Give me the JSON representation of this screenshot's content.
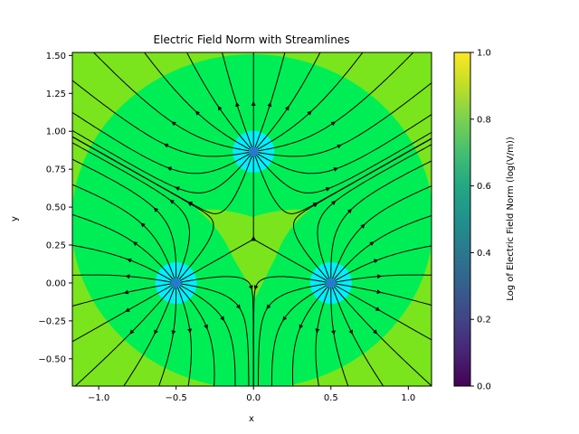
{
  "chart_data": {
    "type": "heatmap",
    "title": "Electric Field Norm with Streamlines",
    "xlabel": "x",
    "ylabel": "y",
    "xlim": [
      -1.17,
      1.15
    ],
    "ylim": [
      -0.68,
      1.52
    ],
    "x_ticks": [
      "−1.0",
      "−0.5",
      "0.0",
      "0.5",
      "1.0"
    ],
    "x_tick_values": [
      -1.0,
      -0.5,
      0.0,
      0.5,
      1.0
    ],
    "y_ticks": [
      "−0.50",
      "−0.25",
      "0.00",
      "0.25",
      "0.50",
      "0.75",
      "1.00",
      "1.25",
      "1.50"
    ],
    "y_tick_values": [
      -0.5,
      -0.25,
      0.0,
      0.25,
      0.5,
      0.75,
      1.0,
      1.25,
      1.5
    ],
    "charges": [
      {
        "x": -0.5,
        "y": 0.0
      },
      {
        "x": 0.5,
        "y": 0.0
      },
      {
        "x": 0.0,
        "y": 0.866
      }
    ],
    "colorbar": {
      "label": "Log of Electric Field Norm (log(V/m))",
      "range": [
        0.0,
        1.0
      ],
      "ticks": [
        "0.0",
        "0.2",
        "0.4",
        "0.6",
        "0.8",
        "1.0"
      ],
      "tick_values": [
        0.0,
        0.2,
        0.4,
        0.6,
        0.8,
        1.0
      ],
      "colormap": "viridis"
    },
    "colors": {
      "low_field": "#7ae51c",
      "mid_field": "#00ee55",
      "high_field": "#00f0ff",
      "charge_marker": "#3b4cc0",
      "streamline": "#000000"
    }
  }
}
